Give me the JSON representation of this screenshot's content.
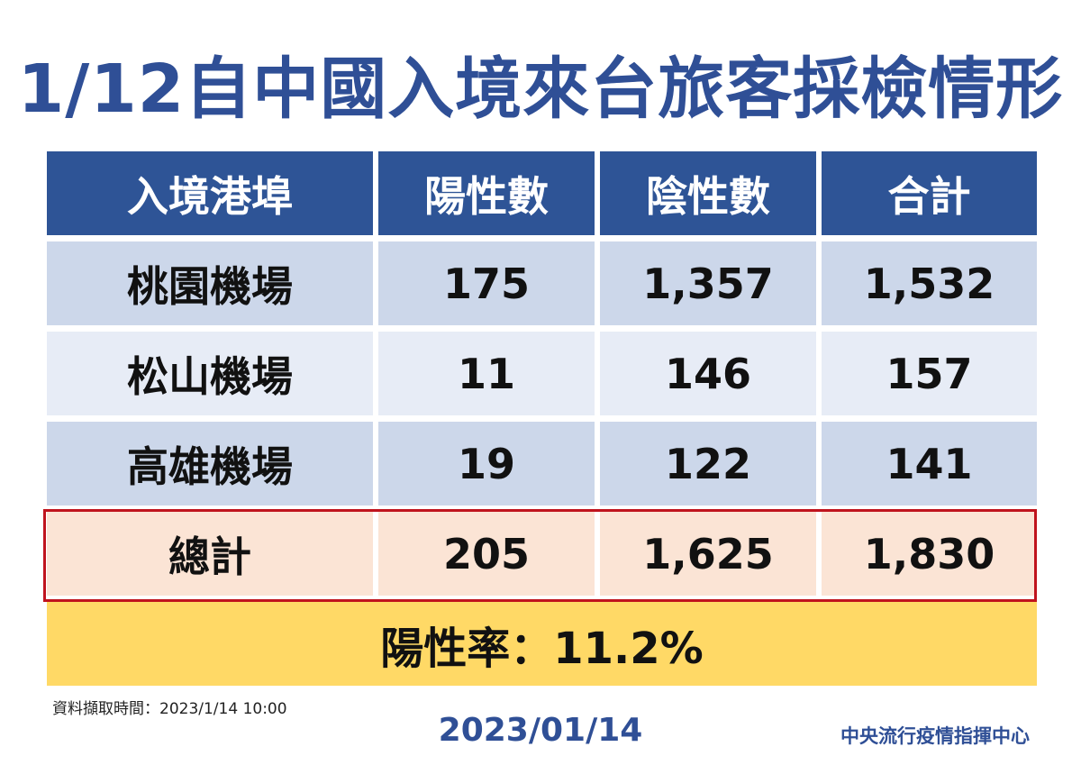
{
  "title": "1/12自中國入境來台旅客採檢情形",
  "table": {
    "headers": [
      "入境港埠",
      "陽性數",
      "陰性數",
      "合計"
    ],
    "rows": [
      [
        "桃園機場",
        "175",
        "1,357",
        "1,532"
      ],
      [
        "松山機場",
        "11",
        "146",
        "157"
      ],
      [
        "高雄機場",
        "19",
        "122",
        "141"
      ]
    ],
    "total": [
      "總計",
      "205",
      "1,625",
      "1,830"
    ],
    "positivity_rate": "陽性率：11.2%"
  },
  "colors": {
    "header_bg": "#2e5496",
    "title": "#2f4f96",
    "total_border": "#c0131d",
    "rate_bg": "#ffd966"
  },
  "footer": {
    "source_note": "資料擷取時間：2023/1/14 10:00",
    "date": "2023/01/14",
    "org": "中央流行疫情指揮中心"
  }
}
